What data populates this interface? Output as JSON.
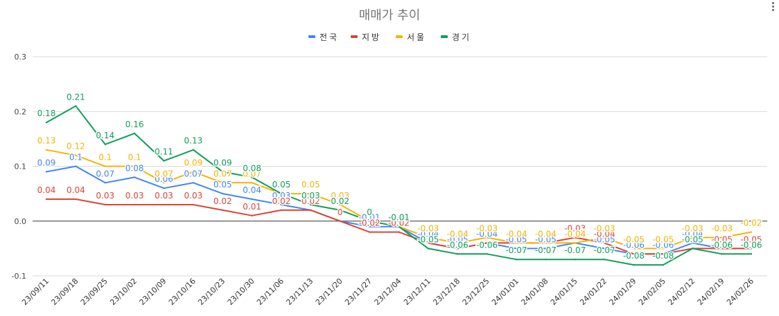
{
  "chart_data": {
    "type": "line",
    "title": "매매가 추이",
    "xlabel": "",
    "ylabel": "",
    "ylim": [
      -0.1,
      0.3
    ],
    "yticks": [
      "0.3",
      "0.2",
      "0.1",
      "0.0",
      "-0.1"
    ],
    "ytick_values": [
      0.3,
      0.2,
      0.1,
      0.0,
      -0.1
    ],
    "legend_position": "top",
    "grid": true,
    "categories": [
      "23/09/11",
      "23/09/18",
      "23/09/25",
      "23/10/02",
      "23/10/09",
      "23/10/16",
      "23/10/23",
      "23/10/30",
      "23/11/06",
      "23/11/13",
      "23/11/20",
      "23/11/27",
      "23/12/04",
      "23/12/11",
      "23/12/18",
      "23/12/25",
      "24/01/01",
      "24/01/08",
      "24/01/15",
      "24/01/22",
      "24/01/29",
      "24/02/05",
      "24/02/12",
      "24/02/19",
      "24/02/26"
    ],
    "series": [
      {
        "name": "전국",
        "color": "#4285f4",
        "values": [
          0.09,
          0.1,
          0.07,
          0.08,
          0.06,
          0.07,
          0.05,
          0.04,
          0.03,
          0.02,
          0.0,
          -0.01,
          -0.01,
          -0.04,
          -0.05,
          -0.04,
          -0.05,
          -0.05,
          -0.04,
          -0.05,
          -0.06,
          -0.06,
          -0.04,
          -0.05,
          -0.05
        ],
        "labels": [
          "0.09",
          "0.1",
          "0.07",
          "0.08",
          "0.06",
          "0.07",
          "0.05",
          "0.04",
          "0.03",
          "",
          "",
          "-0.01",
          "",
          "-0.04",
          "-0.05",
          "-0.04",
          "-0.05",
          "-0.05",
          "",
          "-0.05",
          "-0.06",
          "-0.06",
          "-0.04",
          "",
          ""
        ]
      },
      {
        "name": "지방",
        "color": "#db4437",
        "values": [
          0.04,
          0.04,
          0.03,
          0.03,
          0.03,
          0.03,
          0.02,
          0.01,
          0.02,
          0.02,
          0.0,
          -0.02,
          -0.02,
          -0.04,
          -0.05,
          -0.04,
          -0.04,
          -0.04,
          -0.03,
          -0.04,
          -0.06,
          -0.06,
          -0.05,
          -0.05,
          -0.05
        ],
        "labels": [
          "0.04",
          "0.04",
          "0.03",
          "0.03",
          "0.03",
          "0.03",
          "0.02",
          "0.01",
          "0.02",
          "0.02",
          "0",
          "-0.02",
          "-0.02",
          "",
          "",
          "",
          "",
          "",
          "-0.03",
          "-0.04",
          "",
          "",
          "",
          "-0.05",
          "-0.05"
        ]
      },
      {
        "name": "서울",
        "color": "#f4b400",
        "values": [
          0.13,
          0.12,
          0.1,
          0.1,
          0.07,
          0.09,
          0.07,
          0.07,
          0.05,
          0.05,
          0.03,
          0.0,
          -0.01,
          -0.03,
          -0.04,
          -0.03,
          -0.04,
          -0.04,
          -0.04,
          -0.03,
          -0.05,
          -0.05,
          -0.03,
          -0.03,
          -0.02
        ],
        "labels": [
          "0.13",
          "0.12",
          "0.1",
          "0.1",
          "0.07",
          "0.09",
          "0.07",
          "0.07",
          "",
          "0.05",
          "0.03",
          "",
          "",
          "-0.03",
          "-0.04",
          "-0.03",
          "-0.04",
          "-0.04",
          "-0.04",
          "-0.03",
          "-0.05",
          "-0.05",
          "-0.03",
          "-0.03",
          "-0.02"
        ]
      },
      {
        "name": "경기",
        "color": "#0f9d58",
        "values": [
          0.18,
          0.21,
          0.14,
          0.16,
          0.11,
          0.13,
          0.09,
          0.08,
          0.05,
          0.03,
          0.02,
          0.0,
          -0.01,
          -0.05,
          -0.06,
          -0.06,
          -0.07,
          -0.07,
          -0.07,
          -0.07,
          -0.08,
          -0.08,
          -0.05,
          -0.06,
          -0.06
        ],
        "labels": [
          "0.18",
          "0.21",
          "0.14",
          "0.16",
          "0.11",
          "0.13",
          "0.09",
          "0.08",
          "0.05",
          "0.03",
          "0.02",
          "0",
          "-0.01",
          "-0.05",
          "-0.06",
          "-0.06",
          "-0.07",
          "-0.07",
          "-0.07",
          "-0.07",
          "-0.08",
          "-0.08",
          "-0.05",
          "-0.06",
          "-0.06"
        ]
      }
    ]
  }
}
